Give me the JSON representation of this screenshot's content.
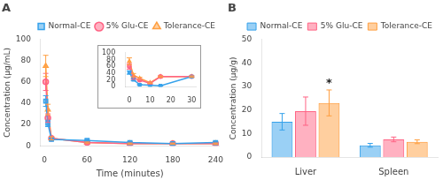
{
  "chart_data": [
    {
      "type": "line",
      "title": "A",
      "xlabel": "Time (minutes)",
      "ylabel": "Concentration (μg/mL)",
      "xlim": [
        -5,
        245
      ],
      "ylim": [
        0,
        100
      ],
      "xticks": [
        0,
        60,
        120,
        180,
        240
      ],
      "yticks": [
        0,
        20,
        40,
        60,
        80,
        100
      ],
      "grid": false,
      "legend": "upper right",
      "x": [
        2,
        5,
        10,
        60,
        120,
        180,
        240
      ],
      "series": [
        {
          "name": "Normal-CE",
          "marker": "square",
          "values": [
            42,
            21,
            6,
            5,
            3,
            2,
            3
          ],
          "errors": [
            5,
            3,
            1,
            1,
            0.5,
            0.5,
            0.5
          ]
        },
        {
          "name": "5% Glu-CE",
          "marker": "circle",
          "values": [
            60,
            26,
            7,
            3,
            2,
            2,
            2
          ],
          "errors": [
            8,
            4,
            1.5,
            0.5,
            0.5,
            0.5,
            0.5
          ]
        },
        {
          "name": "Tolerance-CE",
          "marker": "triangle",
          "values": [
            75,
            34,
            7,
            3,
            2,
            2,
            2
          ],
          "errors": [
            10,
            5,
            1.5,
            0.5,
            0.5,
            0.5,
            0.5
          ]
        }
      ]
    },
    {
      "type": "line",
      "xlim": [
        -2,
        32
      ],
      "ylim": [
        0,
        100
      ],
      "xticks": [
        0,
        10,
        20,
        30
      ],
      "yticks": [
        0,
        20,
        40,
        60,
        80,
        100
      ],
      "grid": false,
      "x": [
        0,
        2,
        5,
        10,
        15,
        30
      ],
      "series": [
        {
          "name": "Normal-CE",
          "marker": "square",
          "values": [
            42,
            21,
            6,
            5,
            3,
            30
          ],
          "errors": [
            5,
            3,
            1,
            1,
            0.5,
            2
          ]
        },
        {
          "name": "5% Glu-CE",
          "marker": "circle",
          "values": [
            60,
            26,
            20,
            10,
            30,
            30
          ],
          "errors": [
            8,
            4,
            3,
            2,
            2,
            2
          ]
        },
        {
          "name": "Tolerance-CE",
          "marker": "triangle",
          "values": [
            75,
            34,
            25,
            12,
            30,
            30
          ],
          "errors": [
            10,
            5,
            3,
            2,
            2,
            2
          ]
        }
      ]
    },
    {
      "type": "bar",
      "title": "B",
      "ylabel": "Concentration (μg/g)",
      "categories": [
        "Liver",
        "Spleen"
      ],
      "ylim": [
        0,
        50
      ],
      "yticks": [
        0,
        10,
        20,
        30,
        40,
        50
      ],
      "grid": false,
      "legend": "upper right",
      "series": [
        {
          "name": "Normal-CE",
          "values": [
            15.0,
            5.0
          ],
          "errors": [
            3.5,
            0.8
          ]
        },
        {
          "name": "5% Glu-CE",
          "values": [
            19.5,
            7.5
          ],
          "errors": [
            6.0,
            1.0
          ]
        },
        {
          "name": "Tolerance-CE",
          "values": [
            23.0,
            6.5
          ],
          "errors": [
            5.5,
            0.8
          ]
        }
      ],
      "annotations": [
        {
          "text": "*",
          "series": "Tolerance-CE",
          "category": "Liver"
        }
      ]
    }
  ]
}
